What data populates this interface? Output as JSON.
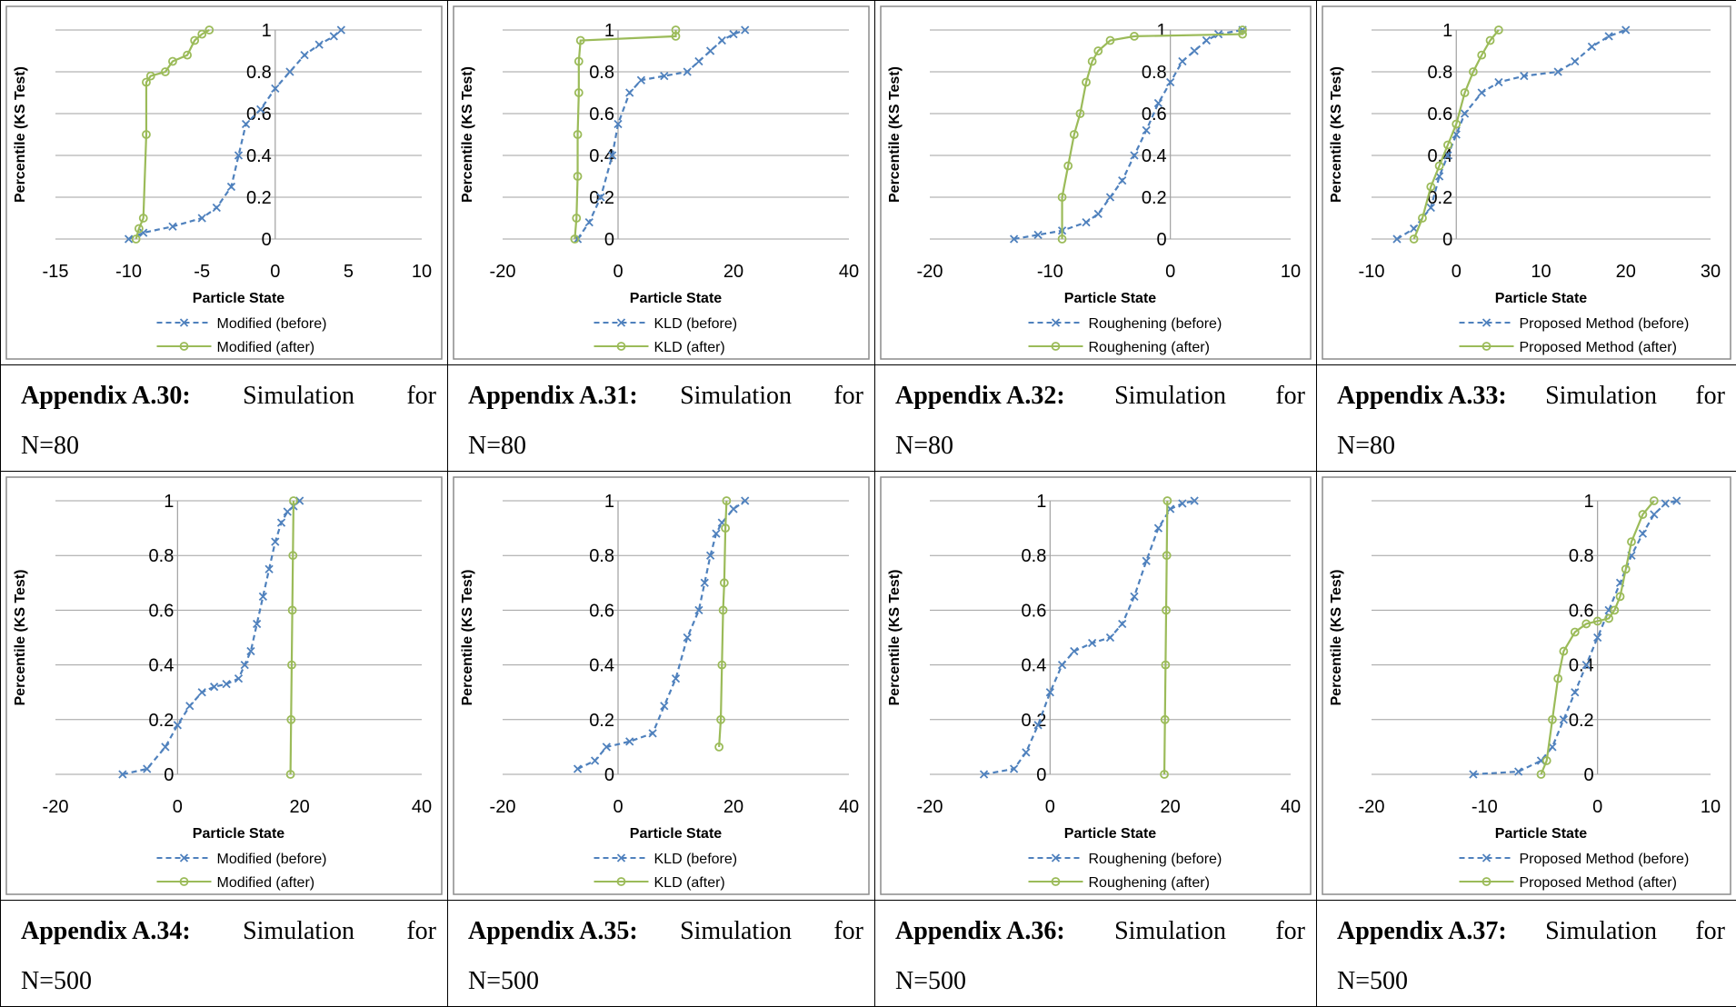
{
  "captions": [
    {
      "label": "Appendix A.30:",
      "word1": "Simulation",
      "word2": "for",
      "n": "N=80"
    },
    {
      "label": "Appendix A.31:",
      "word1": "Simulation",
      "word2": "for",
      "n": "N=80"
    },
    {
      "label": "Appendix A.32:",
      "word1": "Simulation",
      "word2": "for",
      "n": "N=80"
    },
    {
      "label": "Appendix A.33:",
      "word1": "Simulation",
      "word2": "for",
      "n": "N=80"
    },
    {
      "label": "Appendix A.34:",
      "word1": "Simulation",
      "word2": "for",
      "n": "N=500"
    },
    {
      "label": "Appendix A.35:",
      "word1": "Simulation",
      "word2": "for",
      "n": "N=500"
    },
    {
      "label": "Appendix A.36:",
      "word1": "Simulation",
      "word2": "for",
      "n": "N=500"
    },
    {
      "label": "Appendix A.37:",
      "word1": "Simulation",
      "word2": "for",
      "n": "N=500"
    }
  ],
  "colors": {
    "before": "#4F81BD",
    "after": "#9BBB59",
    "grid": "#A0A0A0"
  },
  "chart_data": [
    {
      "type": "line",
      "xlabel": "Particle State",
      "ylabel": "Percentile (KS Test)",
      "xlim": [
        -15,
        10
      ],
      "xticks": [
        "-15",
        "-10",
        "-5",
        "0",
        "5",
        "10"
      ],
      "ylim": [
        0,
        1
      ],
      "yticks": [
        "0",
        "0.2",
        "0.4",
        "0.6",
        "0.8",
        "1"
      ],
      "legend": "bottom",
      "series": [
        {
          "name": "Modified (before)",
          "marker": "x",
          "x": [
            -10,
            -9,
            -7,
            -5,
            -4,
            -3,
            -2.5,
            -2,
            -1,
            0,
            1,
            2,
            3,
            4,
            4.5
          ],
          "y": [
            0,
            0.03,
            0.06,
            0.1,
            0.15,
            0.25,
            0.4,
            0.55,
            0.62,
            0.72,
            0.8,
            0.88,
            0.93,
            0.97,
            1
          ]
        },
        {
          "name": "Modified (after)",
          "marker": "o",
          "x": [
            -9.5,
            -9.3,
            -9,
            -8.8,
            -8.8,
            -8.5,
            -7.5,
            -7,
            -6,
            -5.5,
            -5,
            -4.5
          ],
          "y": [
            0,
            0.05,
            0.1,
            0.5,
            0.75,
            0.78,
            0.8,
            0.85,
            0.88,
            0.95,
            0.98,
            1
          ]
        }
      ]
    },
    {
      "type": "line",
      "xlabel": "Particle State",
      "ylabel": "Percentile (KS Test)",
      "xlim": [
        -20,
        40
      ],
      "xticks": [
        "-20",
        "0",
        "20",
        "40"
      ],
      "ylim": [
        0,
        1
      ],
      "yticks": [
        "0",
        "0.2",
        "0.4",
        "0.6",
        "0.8",
        "1"
      ],
      "legend": "bottom",
      "series": [
        {
          "name": "KLD (before)",
          "marker": "x",
          "x": [
            -7,
            -5,
            -3,
            -1,
            0,
            2,
            4,
            8,
            12,
            14,
            16,
            18,
            20,
            22
          ],
          "y": [
            0,
            0.08,
            0.2,
            0.4,
            0.55,
            0.7,
            0.76,
            0.78,
            0.8,
            0.85,
            0.9,
            0.95,
            0.98,
            1
          ]
        },
        {
          "name": "KLD (after)",
          "marker": "o",
          "x": [
            -7.5,
            -7.2,
            -7,
            -7,
            -6.8,
            -6.8,
            -6.5,
            10,
            10
          ],
          "y": [
            0,
            0.1,
            0.3,
            0.5,
            0.7,
            0.85,
            0.95,
            0.97,
            1
          ]
        }
      ]
    },
    {
      "type": "line",
      "xlabel": "Particle State",
      "ylabel": "Percentile (KS Test)",
      "xlim": [
        -20,
        10
      ],
      "xticks": [
        "-20",
        "-10",
        "0",
        "10"
      ],
      "ylim": [
        0,
        1
      ],
      "yticks": [
        "0",
        "0.2",
        "0.4",
        "0.6",
        "0.8",
        "1"
      ],
      "legend": "bottom",
      "series": [
        {
          "name": "Roughening (before)",
          "marker": "x",
          "x": [
            -13,
            -11,
            -9,
            -7,
            -6,
            -5,
            -4,
            -3,
            -2,
            -1,
            0,
            1,
            2,
            3,
            4,
            6
          ],
          "y": [
            0,
            0.02,
            0.04,
            0.08,
            0.12,
            0.2,
            0.28,
            0.4,
            0.52,
            0.65,
            0.75,
            0.85,
            0.9,
            0.95,
            0.98,
            1
          ]
        },
        {
          "name": "Roughening (after)",
          "marker": "o",
          "x": [
            -9,
            -9,
            -8.5,
            -8,
            -7.5,
            -7,
            -6.5,
            -6,
            -5,
            -3,
            6,
            6
          ],
          "y": [
            0,
            0.2,
            0.35,
            0.5,
            0.6,
            0.75,
            0.85,
            0.9,
            0.95,
            0.97,
            0.98,
            1
          ]
        }
      ]
    },
    {
      "type": "line",
      "xlabel": "Particle State",
      "ylabel": "Percentile (KS Test)",
      "xlim": [
        -10,
        30
      ],
      "xticks": [
        "-10",
        "0",
        "10",
        "20",
        "30"
      ],
      "ylim": [
        0,
        1
      ],
      "yticks": [
        "0",
        "0.2",
        "0.4",
        "0.6",
        "0.8",
        "1"
      ],
      "legend": "bottom",
      "series": [
        {
          "name": "Proposed Method (before)",
          "marker": "x",
          "x": [
            -7,
            -5,
            -3,
            -2,
            -1,
            0,
            1,
            3,
            5,
            8,
            12,
            14,
            16,
            18,
            20
          ],
          "y": [
            0,
            0.05,
            0.15,
            0.3,
            0.4,
            0.5,
            0.6,
            0.7,
            0.75,
            0.78,
            0.8,
            0.85,
            0.92,
            0.97,
            1
          ]
        },
        {
          "name": "Proposed Method (after)",
          "marker": "o",
          "x": [
            -5,
            -4,
            -3,
            -2,
            -1,
            0,
            1,
            2,
            3,
            4,
            5
          ],
          "y": [
            0,
            0.1,
            0.25,
            0.35,
            0.45,
            0.55,
            0.7,
            0.8,
            0.88,
            0.95,
            1
          ]
        }
      ]
    },
    {
      "type": "line",
      "xlabel": "Particle State",
      "ylabel": "Percentile (KS Test)",
      "xlim": [
        -20,
        40
      ],
      "xticks": [
        "-20",
        "0",
        "20",
        "40"
      ],
      "ylim": [
        0,
        1
      ],
      "yticks": [
        "0",
        "0.2",
        "0.4",
        "0.6",
        "0.8",
        "1"
      ],
      "legend": "bottom",
      "series": [
        {
          "name": "Modified (before)",
          "marker": "x",
          "x": [
            -9,
            -5,
            -2,
            0,
            2,
            4,
            6,
            8,
            10,
            11,
            12,
            13,
            14,
            15,
            16,
            17,
            18,
            19,
            20
          ],
          "y": [
            0,
            0.02,
            0.1,
            0.18,
            0.25,
            0.3,
            0.32,
            0.33,
            0.35,
            0.4,
            0.45,
            0.55,
            0.65,
            0.75,
            0.85,
            0.92,
            0.96,
            0.98,
            1
          ]
        },
        {
          "name": "Modified (after)",
          "marker": "o",
          "x": [
            18.5,
            18.6,
            18.7,
            18.8,
            18.9,
            19
          ],
          "y": [
            0,
            0.2,
            0.4,
            0.6,
            0.8,
            1
          ]
        }
      ]
    },
    {
      "type": "line",
      "xlabel": "Particle State",
      "ylabel": "Percentile (KS Test)",
      "xlim": [
        -20,
        40
      ],
      "xticks": [
        "-20",
        "0",
        "20",
        "40"
      ],
      "ylim": [
        0,
        1
      ],
      "yticks": [
        "0",
        "0.2",
        "0.4",
        "0.6",
        "0.8",
        "1"
      ],
      "legend": "bottom",
      "series": [
        {
          "name": "KLD (before)",
          "marker": "x",
          "x": [
            -7,
            -4,
            -2,
            2,
            6,
            8,
            10,
            12,
            14,
            15,
            16,
            17,
            18,
            20,
            22
          ],
          "y": [
            0.02,
            0.05,
            0.1,
            0.12,
            0.15,
            0.25,
            0.35,
            0.5,
            0.6,
            0.7,
            0.8,
            0.88,
            0.92,
            0.97,
            1
          ]
        },
        {
          "name": "KLD (after)",
          "marker": "o",
          "x": [
            17.5,
            17.8,
            18,
            18.2,
            18.4,
            18.6,
            18.8
          ],
          "y": [
            0.1,
            0.2,
            0.4,
            0.6,
            0.7,
            0.9,
            1
          ]
        }
      ]
    },
    {
      "type": "line",
      "xlabel": "Particle State",
      "ylabel": "Percentile (KS Test)",
      "xlim": [
        -20,
        40
      ],
      "xticks": [
        "-20",
        "0",
        "20",
        "40"
      ],
      "ylim": [
        0,
        1
      ],
      "yticks": [
        "0",
        "0.2",
        "0.4",
        "0.6",
        "0.8",
        "1"
      ],
      "legend": "bottom",
      "series": [
        {
          "name": "Roughening (before)",
          "marker": "x",
          "x": [
            -11,
            -6,
            -4,
            -2,
            0,
            2,
            4,
            7,
            10,
            12,
            14,
            16,
            18,
            20,
            22,
            24
          ],
          "y": [
            0,
            0.02,
            0.08,
            0.18,
            0.3,
            0.4,
            0.45,
            0.48,
            0.5,
            0.55,
            0.65,
            0.78,
            0.9,
            0.97,
            0.99,
            1
          ]
        },
        {
          "name": "Roughening (after)",
          "marker": "o",
          "x": [
            19,
            19.1,
            19.2,
            19.3,
            19.4,
            19.5
          ],
          "y": [
            0,
            0.2,
            0.4,
            0.6,
            0.8,
            1
          ]
        }
      ]
    },
    {
      "type": "line",
      "xlabel": "Particle State",
      "ylabel": "Percentile (KS Test)",
      "xlim": [
        -20,
        10
      ],
      "xticks": [
        "-20",
        "-10",
        "0",
        "10"
      ],
      "ylim": [
        0,
        1
      ],
      "yticks": [
        "0",
        "0.2",
        "0.4",
        "0.6",
        "0.8",
        "1"
      ],
      "legend": "bottom",
      "series": [
        {
          "name": "Proposed Method (before)",
          "marker": "x",
          "x": [
            -11,
            -7,
            -5,
            -4,
            -3,
            -2,
            -1,
            0,
            1,
            2,
            3,
            4,
            5,
            6,
            7
          ],
          "y": [
            0,
            0.01,
            0.05,
            0.1,
            0.2,
            0.3,
            0.4,
            0.5,
            0.6,
            0.7,
            0.8,
            0.88,
            0.95,
            0.99,
            1
          ]
        },
        {
          "name": "Proposed Method (after)",
          "marker": "o",
          "x": [
            -5,
            -4.5,
            -4,
            -3.5,
            -3,
            -2,
            -1,
            0,
            1,
            1.5,
            2,
            2.5,
            3,
            4,
            5
          ],
          "y": [
            0,
            0.05,
            0.2,
            0.35,
            0.45,
            0.52,
            0.55,
            0.56,
            0.57,
            0.6,
            0.65,
            0.75,
            0.85,
            0.95,
            1
          ]
        }
      ]
    }
  ]
}
